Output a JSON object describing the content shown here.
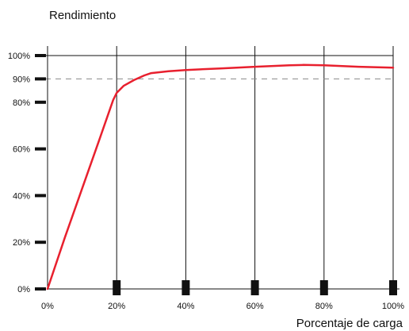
{
  "chart_data": {
    "type": "line",
    "ylabel": "Rendimiento",
    "xlabel": "Porcentaje de carga",
    "x_ticks": [
      "0%",
      "20%",
      "40%",
      "60%",
      "80%",
      "100%"
    ],
    "y_ticks": [
      "0%",
      "20%",
      "40%",
      "60%",
      "80%",
      "90%",
      "100%"
    ],
    "y_tick_values": [
      0,
      20,
      40,
      60,
      80,
      90,
      100
    ],
    "xlim": [
      0,
      100
    ],
    "ylim": [
      0,
      100
    ],
    "reference_line": {
      "y": 90,
      "style": "dashed"
    },
    "series": [
      {
        "x": [
          0,
          5,
          10,
          15,
          19,
          20,
          22,
          25,
          28,
          30,
          35,
          40,
          50,
          60,
          70,
          74,
          80,
          90,
          100
        ],
        "y": [
          0,
          22,
          43,
          64,
          81,
          84,
          87,
          89.5,
          91.5,
          92.5,
          93.3,
          93.8,
          94.5,
          95.2,
          95.8,
          96,
          95.8,
          95.2,
          94.8
        ]
      }
    ],
    "grid": "vertical",
    "colors": {
      "line": "#e8202e",
      "axis": "#111111",
      "ref": "#888888"
    }
  }
}
